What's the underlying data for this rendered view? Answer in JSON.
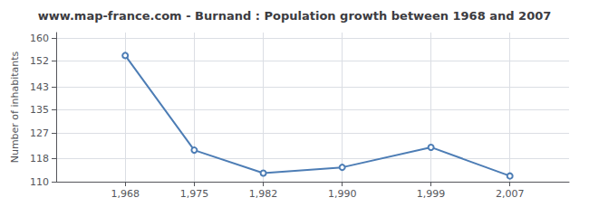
{
  "chart_data": {
    "type": "line",
    "title": "www.map-france.com - Burnand : Population growth between 1968 and 2007",
    "ylabel": "Number of inhabitants",
    "x": [
      1968,
      1975,
      1982,
      1990,
      1999,
      2007
    ],
    "values": [
      154,
      121,
      113,
      115,
      122,
      112
    ],
    "color": "#4d7db5",
    "marker": "circle",
    "xlim": [
      1961,
      2013
    ],
    "xticks": [
      1968,
      1975,
      1982,
      1990,
      1999,
      2007
    ],
    "ylim": [
      110,
      162
    ],
    "yticks": [
      110,
      118,
      127,
      135,
      143,
      152,
      160
    ],
    "grid": true
  }
}
